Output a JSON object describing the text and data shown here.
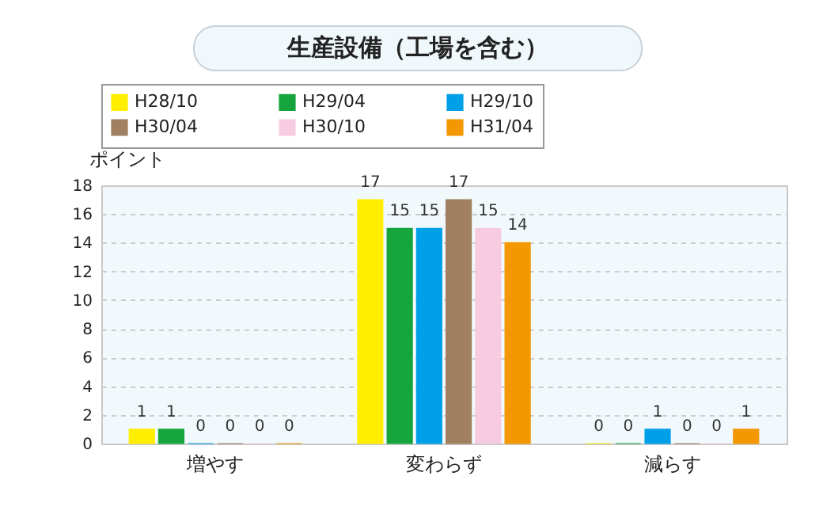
{
  "chart_data": {
    "type": "bar",
    "title": "生産設備（工場を含む）",
    "ylabel": "ポイント",
    "categories": [
      "増やす",
      "変わらず",
      "減らす"
    ],
    "series": [
      {
        "name": "H28/10",
        "color": "#ffee00",
        "values": [
          1,
          17,
          0
        ]
      },
      {
        "name": "H29/04",
        "color": "#16a53c",
        "values": [
          1,
          15,
          0
        ]
      },
      {
        "name": "H29/10",
        "color": "#00a0e8",
        "values": [
          0,
          15,
          1
        ]
      },
      {
        "name": "H30/04",
        "color": "#a08060",
        "values": [
          0,
          17,
          0
        ]
      },
      {
        "name": "H30/10",
        "color": "#f8cce0",
        "values": [
          0,
          15,
          0
        ]
      },
      {
        "name": "H31/04",
        "color": "#f39800",
        "values": [
          0,
          14,
          1
        ]
      }
    ],
    "ylim": [
      0,
      18
    ],
    "yticks": [
      0,
      2,
      4,
      6,
      8,
      10,
      12,
      14,
      16,
      18
    ],
    "grid": true,
    "legend": "top",
    "data_labels": true
  }
}
